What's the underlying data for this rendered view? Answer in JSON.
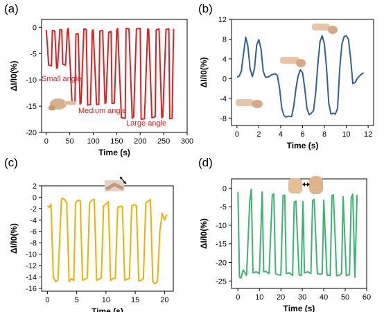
{
  "chart_data": [
    {
      "type": "line",
      "panel": "(a)",
      "xlabel": "Time (s)",
      "ylabel": "ΔI/I0(%)",
      "xlim": [
        -10,
        300
      ],
      "ylim": [
        -20,
        1.5
      ],
      "xticks": [
        0,
        50,
        100,
        150,
        200,
        250,
        300
      ],
      "yticks": [
        0,
        -5,
        -10,
        -15,
        -20
      ],
      "color": "#e02020",
      "annotations": [
        "Small angle",
        "Medium angle",
        "Large angle"
      ],
      "series": [
        {
          "x": [
            0,
            5,
            11,
            13,
            18,
            22,
            24,
            29,
            33,
            35,
            41,
            45,
            47,
            55,
            61,
            63,
            68,
            72,
            74,
            80,
            85,
            88,
            94,
            98,
            100,
            107,
            112,
            114,
            120,
            125,
            127,
            133,
            138,
            140,
            145,
            150,
            152,
            160,
            168,
            170,
            176,
            183,
            186,
            192,
            200,
            202,
            209,
            216,
            218,
            225,
            232,
            234,
            240,
            246,
            248,
            255,
            261,
            263,
            268,
            271
          ],
          "y": [
            -0.5,
            -7.2,
            -7.3,
            -0.6,
            -0.7,
            -7.8,
            -7.6,
            -0.4,
            -0.5,
            -7.0,
            -7.2,
            -0.5,
            -0.2,
            -14.5,
            -14.6,
            -1.3,
            -1.2,
            -14.6,
            -14.4,
            -0.3,
            -0.4,
            -14.8,
            -14.7,
            -0.6,
            -0.5,
            -14.7,
            -14.6,
            -0.7,
            -0.6,
            -14.5,
            -14.3,
            -0.9,
            -0.8,
            -14.5,
            -14.4,
            -0.6,
            -0.2,
            -17.2,
            -17.3,
            -0.2,
            -0.3,
            -17.3,
            -17.0,
            -0.3,
            -0.2,
            -17.5,
            -17.4,
            -0.3,
            -0.4,
            -17.2,
            -17.0,
            -0.5,
            -0.3,
            -17.2,
            -17.0,
            -0.4,
            -0.3,
            -17.4,
            -17.3,
            -0.3
          ]
        }
      ]
    },
    {
      "type": "line",
      "panel": "(b)",
      "xlabel": "Time (s)",
      "ylabel": "ΔI/I0(%)",
      "xlim": [
        -0.5,
        12.5
      ],
      "ylim": [
        -9.5,
        12
      ],
      "xticks": [
        0,
        2,
        4,
        6,
        8,
        10,
        12
      ],
      "yticks": [
        12,
        8,
        4,
        0,
        -4,
        -8
      ],
      "color": "#2f5f98",
      "series": [
        {
          "x": [
            0,
            0.2,
            0.4,
            0.6,
            0.8,
            1.0,
            1.2,
            1.4,
            1.6,
            1.8,
            2.0,
            2.2,
            2.4,
            2.6,
            2.8,
            3.0,
            3.2,
            3.5,
            3.7,
            3.9,
            4.1,
            4.3,
            4.5,
            4.7,
            5.0,
            5.2,
            5.4,
            5.6,
            5.8,
            6.0,
            6.2,
            6.4,
            6.6,
            6.8,
            7.0,
            7.2,
            7.4,
            7.6,
            7.8,
            8.0,
            8.2,
            8.4,
            8.6,
            8.8,
            9.0,
            9.2,
            9.4,
            9.6,
            9.8,
            10.0,
            10.2,
            10.4,
            10.6,
            10.8,
            11.0,
            11.2,
            11.4,
            11.6
          ],
          "y": [
            0.3,
            0.5,
            1.5,
            5.0,
            8.4,
            6.5,
            2.0,
            0.4,
            2.0,
            6.8,
            7.9,
            6.0,
            1.5,
            0.3,
            0.3,
            0.5,
            0.8,
            1.0,
            0.6,
            -2.0,
            -6.0,
            -7.5,
            -7.8,
            -7.6,
            -7.7,
            -5.5,
            -2.0,
            0.6,
            1.8,
            1.2,
            -2.0,
            -6.0,
            -7.3,
            -7.0,
            -6.5,
            -3.0,
            3.0,
            7.5,
            8.7,
            7.0,
            2.0,
            -5.0,
            -7.2,
            -7.0,
            -7.2,
            -6.0,
            2.0,
            7.0,
            8.5,
            8.7,
            8.0,
            4.0,
            -1.0,
            -0.8,
            0,
            0.5,
            0.9,
            1.2
          ]
        }
      ]
    },
    {
      "type": "line",
      "panel": "(c)",
      "xlabel": "Time (s)",
      "ylabel": "ΔI/I0(%)",
      "xlim": [
        -1,
        21.5
      ],
      "ylim": [
        -16.5,
        2
      ],
      "xticks": [
        0,
        5,
        10,
        15,
        20
      ],
      "yticks": [
        2,
        0,
        -2,
        -4,
        -6,
        -8,
        -10,
        -12,
        -14,
        -16
      ],
      "color": "#f0b000",
      "series": [
        {
          "x": [
            0,
            0.3,
            0.6,
            1.0,
            1.4,
            1.8,
            2.1,
            2.4,
            2.7,
            3.0,
            3.3,
            3.7,
            4.1,
            4.5,
            4.8,
            5.2,
            5.6,
            6.0,
            6.4,
            6.8,
            7.2,
            7.6,
            8.0,
            8.4,
            8.8,
            9.2,
            9.6,
            10.0,
            10.4,
            10.8,
            11.2,
            11.6,
            12.0,
            12.4,
            12.8,
            13.2,
            13.6,
            14.0,
            14.4,
            14.8,
            15.2,
            15.6,
            16.0,
            16.4,
            16.8,
            17.2,
            17.6,
            18.0,
            18.4,
            18.8,
            19.2,
            19.6,
            20.0,
            20.4
          ],
          "y": [
            -1.5,
            -1.8,
            -1.2,
            -14.0,
            -14.8,
            -14.5,
            -7.0,
            -0.3,
            -0.2,
            -0.5,
            -1.0,
            -14.8,
            -14.3,
            -14.6,
            -1.0,
            -0.5,
            -0.6,
            -14.6,
            -14.4,
            -14.2,
            -1.0,
            -0.5,
            -0.4,
            -14.6,
            -14.4,
            -14.2,
            -1.5,
            -1.2,
            -0.8,
            -14.6,
            -14.3,
            -14.2,
            -1.8,
            -1.6,
            -1.6,
            -14.6,
            -14.4,
            -14.3,
            -1.5,
            -1.3,
            -1.5,
            -14.7,
            -14.6,
            -14.3,
            -1.0,
            -0.7,
            -0.4,
            -14.8,
            -15.2,
            -14.8,
            -6.0,
            -2.8,
            -4.0,
            -3.0
          ]
        }
      ]
    },
    {
      "type": "line",
      "panel": "(d)",
      "xlabel": "Time (s)",
      "ylabel": "ΔI/I0(%)",
      "xlim": [
        -3,
        60
      ],
      "ylim": [
        -27,
        2.5
      ],
      "xticks": [
        0,
        10,
        20,
        30,
        40,
        50,
        60
      ],
      "yticks": [
        0,
        -5,
        -10,
        -15,
        -20,
        -25
      ],
      "color": "#3cb371",
      "series": [
        {
          "x": [
            0,
            0.7,
            1.4,
            2.5,
            4,
            5.5,
            6.2,
            7.0,
            8.5,
            10,
            11.3,
            12.0,
            13,
            14.5,
            16,
            16.7,
            17.5,
            18.5,
            20,
            21,
            21.8,
            22.5,
            24,
            25.5,
            26.2,
            27,
            28.5,
            29.5,
            30.3,
            31,
            32.5,
            34,
            34.8,
            35.5,
            37,
            38.5,
            39.3,
            40,
            41.5,
            43,
            43.8,
            44.5,
            46,
            47.5,
            48.3,
            49,
            50.5,
            52,
            52.8,
            53.5,
            54.5,
            55.5
          ],
          "y": [
            -1.0,
            -24.0,
            -24.2,
            -22.0,
            -23.5,
            -3.5,
            -0.3,
            -22.8,
            -22.5,
            -23.0,
            -1.0,
            -22.5,
            -22.4,
            -23.0,
            -1.8,
            -1.5,
            -23.0,
            -23.3,
            -23.4,
            -2.0,
            -1.9,
            -23.0,
            -22.8,
            -23.5,
            -3.8,
            -3.5,
            -23.3,
            -23.5,
            -3.6,
            -22.8,
            -22.5,
            -23.0,
            -3.4,
            -3.0,
            -23.0,
            -23.2,
            -23.0,
            -3.2,
            -23.4,
            -23.5,
            -2.0,
            -1.8,
            -23.6,
            -23.4,
            -23.0,
            -2.3,
            -23.5,
            -23.3,
            -2.5,
            -1.6,
            -24.0,
            -1.8
          ]
        }
      ]
    }
  ]
}
